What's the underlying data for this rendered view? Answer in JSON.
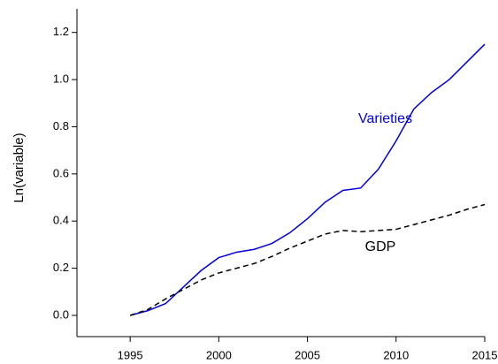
{
  "chart_data": {
    "type": "line",
    "y_label": "Ln(variable)",
    "x": [
      1995,
      1996,
      1997,
      1998,
      1999,
      2000,
      2001,
      2002,
      2003,
      2004,
      2005,
      2006,
      2007,
      2008,
      2009,
      2010,
      2011,
      2012,
      2013,
      2014,
      2015
    ],
    "series": [
      {
        "name": "Varieties",
        "color": "#0000e0",
        "dash": "solid",
        "values": [
          0,
          0.02,
          0.05,
          0.12,
          0.19,
          0.245,
          0.268,
          0.28,
          0.305,
          0.35,
          0.41,
          0.48,
          0.53,
          0.54,
          0.62,
          0.74,
          0.875,
          0.945,
          1.0,
          1.075,
          1.15
        ]
      },
      {
        "name": "GDP",
        "color": "#000000",
        "dash": "dashed",
        "values": [
          0,
          0.025,
          0.07,
          0.11,
          0.15,
          0.18,
          0.2,
          0.22,
          0.25,
          0.285,
          0.315,
          0.345,
          0.36,
          0.355,
          0.36,
          0.365,
          0.385,
          0.405,
          0.425,
          0.45,
          0.47
        ]
      }
    ],
    "xlim": [
      1992,
      2015
    ],
    "xticks": [
      1995,
      2000,
      2005,
      2010,
      2015
    ],
    "ylim": [
      -0.09,
      1.3
    ],
    "yticks": [
      {
        "value": 0,
        "label": "0.0"
      },
      {
        "value": 0.2,
        "label": "0.2"
      },
      {
        "value": 0.4,
        "label": "0.4"
      },
      {
        "value": 0.6,
        "label": "0.6"
      },
      {
        "value": 0.8,
        "label": "0.8"
      },
      {
        "value": 1.0,
        "label": "1.0"
      },
      {
        "value": 1.2,
        "label": "1.2"
      }
    ],
    "grid": false
  }
}
